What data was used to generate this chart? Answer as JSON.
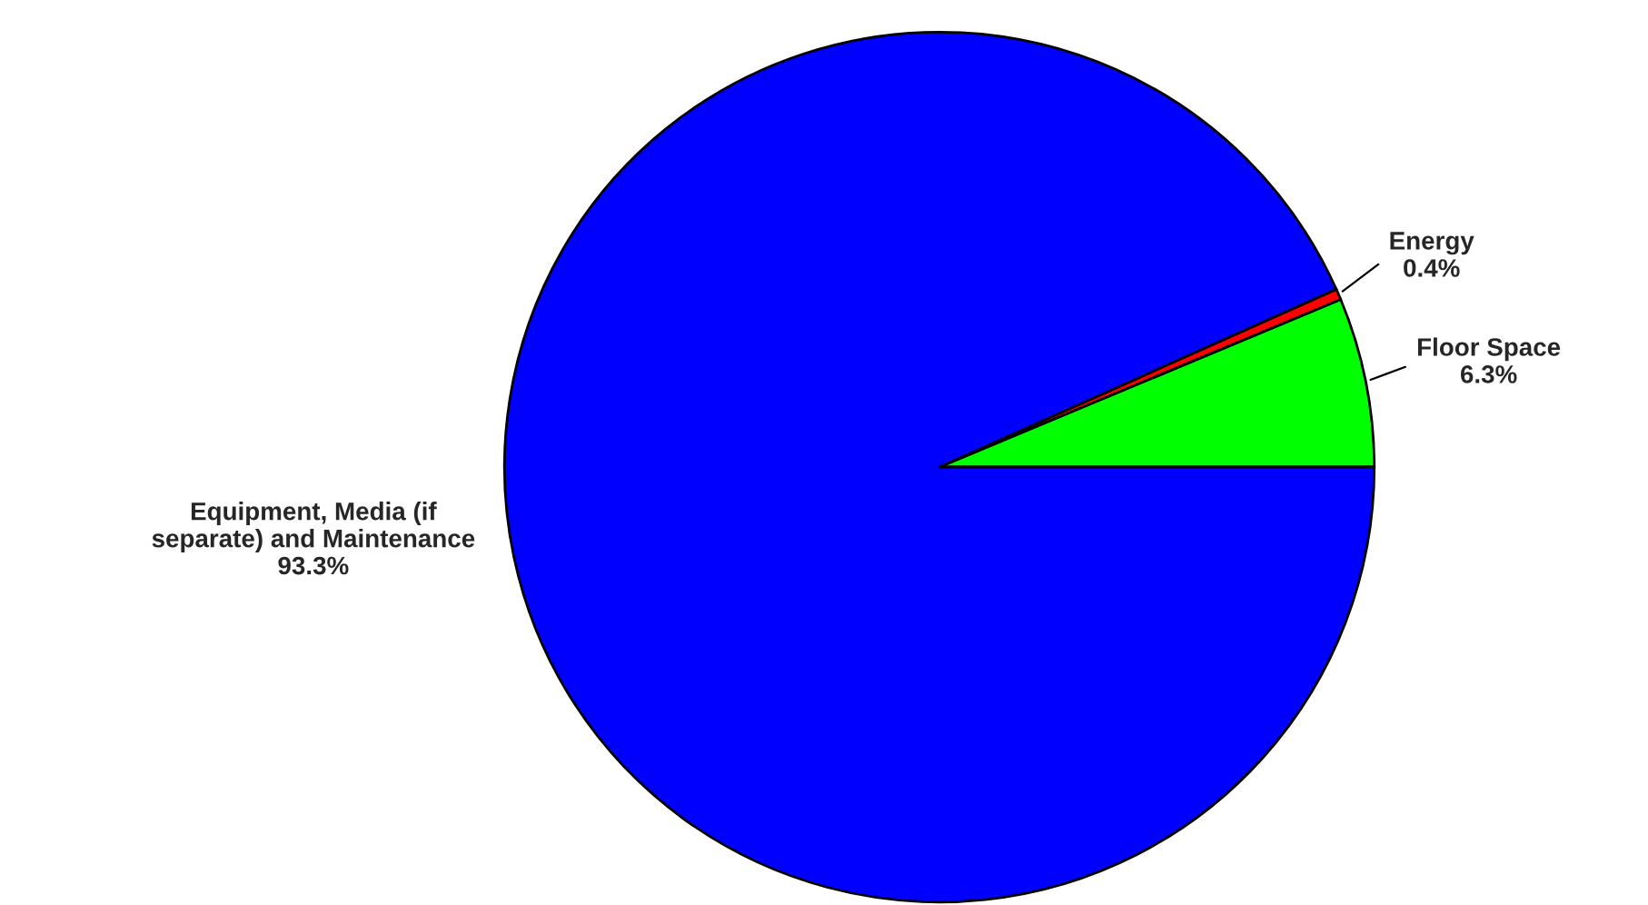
{
  "chart_data": {
    "type": "pie",
    "categories": [
      "Floor Space",
      "Energy",
      "Equipment, Media (if separate) and Maintenance"
    ],
    "values": [
      6.3,
      0.4,
      93.3
    ],
    "colors": [
      "#00ff00",
      "#ff0000",
      "#0000ff"
    ],
    "value_labels": [
      "6.3%",
      "0.4%",
      "93.3%"
    ]
  }
}
